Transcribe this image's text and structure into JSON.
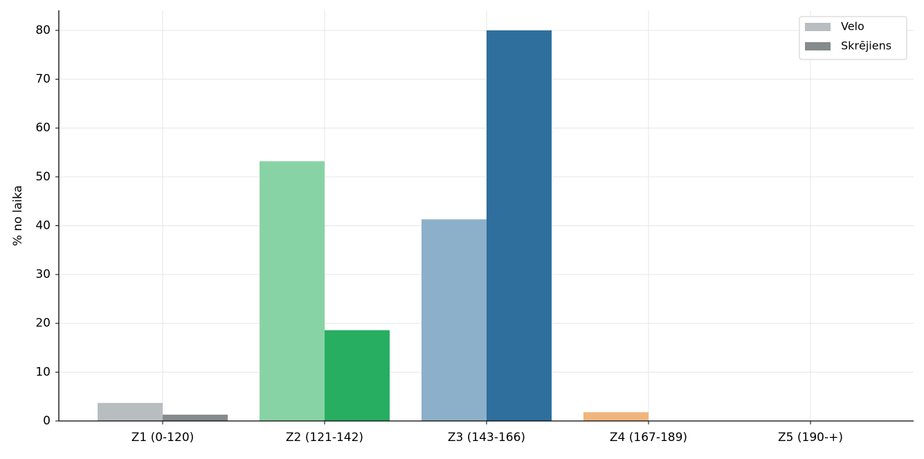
{
  "chart_data": {
    "type": "bar",
    "y_label": "% no laika",
    "categories": [
      "Z1 (0-120)",
      "Z2 (121-142)",
      "Z3 (143-166)",
      "Z4 (167-189)",
      "Z5 (190-+)"
    ],
    "series": [
      {
        "name": "Velo",
        "color": "#b8bdc0",
        "colors": [
          "#b8bdc0",
          "#88d3a5",
          "#8cb0c9",
          "#f0b57f",
          "#e39b93"
        ],
        "values": [
          3.7,
          53.2,
          41.3,
          1.8,
          0
        ]
      },
      {
        "name": "Skrējiens",
        "color": "#858b8c",
        "colors": [
          "#858b8c",
          "#27ae60",
          "#2e6f9e",
          "#e67e22",
          "#c0392b"
        ],
        "values": [
          1.3,
          18.6,
          80,
          0,
          0
        ]
      }
    ],
    "ylim": [
      0,
      84.1
    ],
    "yticks": [
      0,
      10,
      20,
      30,
      40,
      50,
      60,
      70,
      80
    ],
    "grid": true,
    "legend": "upper right"
  }
}
